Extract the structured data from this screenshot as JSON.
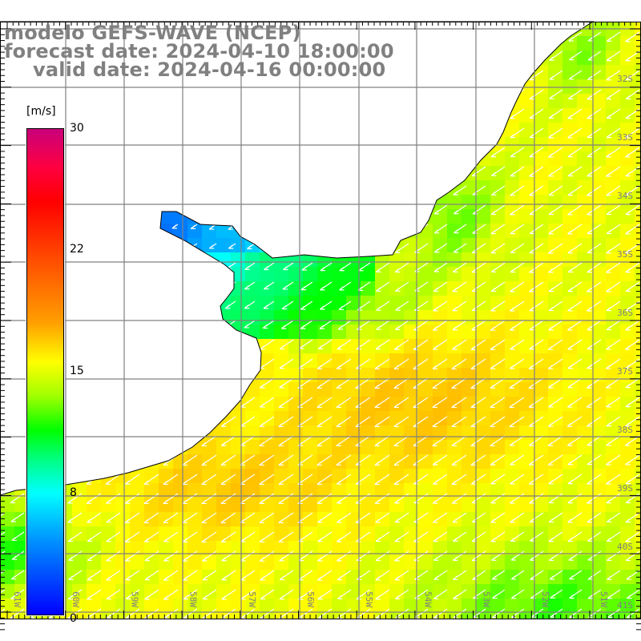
{
  "header": {
    "model": "modelo GEFS-WAVE (NCEP)",
    "forecast_date": "forecast date: 2024-04-10 18:00:00",
    "valid_date": "valid date: 2024-04-16 00:00:00"
  },
  "legend": {
    "unit": "[m/s]",
    "ticks": [
      "30",
      "22",
      "15",
      "8",
      "0"
    ]
  },
  "map": {
    "lat_labels": [
      "32S",
      "33S",
      "34S",
      "35S",
      "36S",
      "37S",
      "38S",
      "39S",
      "40S",
      "41S"
    ],
    "lon_labels": [
      "61W",
      "60W",
      "59W",
      "58W",
      "57W",
      "56W",
      "55W",
      "54W",
      "53W",
      "52W",
      "51W"
    ],
    "colors": {
      "land": "#ffffff",
      "grid": "#808080",
      "coast": "#000000",
      "arrow": "#ffffff"
    }
  }
}
